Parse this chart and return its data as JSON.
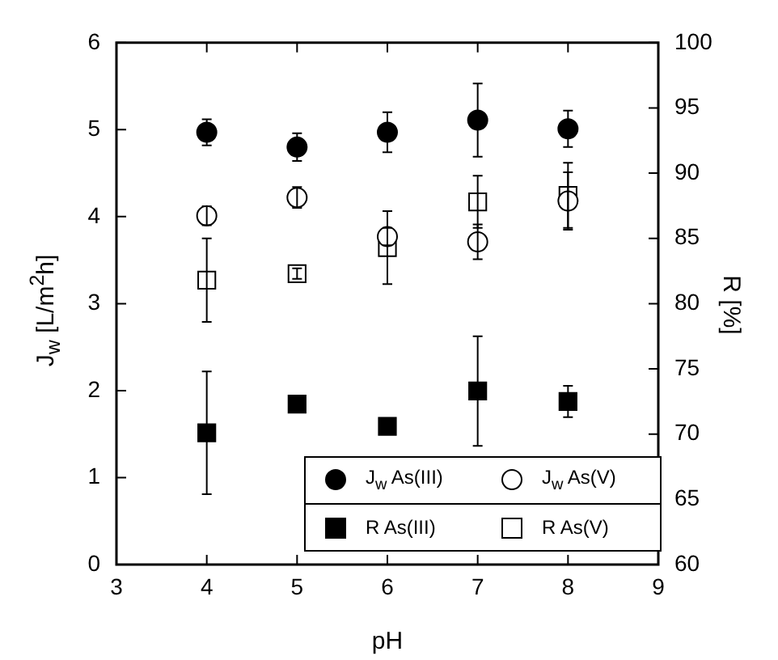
{
  "chart_data": {
    "type": "scatter",
    "xlabel": "pH",
    "ylabel": "J$_{w}$ [L/m$^{2}$h]",
    "y2label": "R [%]",
    "x": [
      4,
      5,
      6,
      7,
      8
    ],
    "xlim": [
      3,
      9
    ],
    "xticks": [
      3,
      4,
      5,
      6,
      7,
      8,
      9
    ],
    "ylim": [
      0,
      6
    ],
    "yticks": [
      0,
      1,
      2,
      3,
      4,
      5,
      6
    ],
    "y2lim": [
      60,
      100
    ],
    "y2ticks": [
      60,
      65,
      70,
      75,
      80,
      85,
      90,
      95,
      100
    ],
    "grid": false,
    "legend": "bottom right",
    "series": [
      {
        "name": "J$_{w}$ As(III)",
        "color": "#000000",
        "marker": "circle",
        "values": [
          4.97,
          4.8,
          4.97,
          5.11,
          5.01
        ],
        "errors": [
          0.15,
          0.16,
          0.23,
          0.42,
          0.21
        ]
      },
      {
        "name": "J$_{w}$ As(V)",
        "color": "#ffffff",
        "marker": "circle",
        "values": [
          4.01,
          4.22,
          3.77,
          3.71,
          4.18
        ],
        "errors": [
          0.11,
          0.12,
          0.1,
          0.2,
          0.33
        ]
      },
      {
        "name": "R As(III)",
        "color": "#000000",
        "marker": "square",
        "axis": "y2",
        "values": [
          70.1,
          72.3,
          70.6,
          73.3,
          72.5
        ],
        "errors": [
          4.7,
          null,
          null,
          4.2,
          1.2
        ]
      },
      {
        "name": "R As(V)",
        "color": "#ffffff",
        "marker": "square",
        "axis": "y2",
        "values": [
          81.8,
          82.3,
          84.3,
          87.8,
          88.3
        ],
        "errors": [
          3.2,
          0.4,
          2.8,
          2,
          2.5
        ]
      }
    ]
  }
}
